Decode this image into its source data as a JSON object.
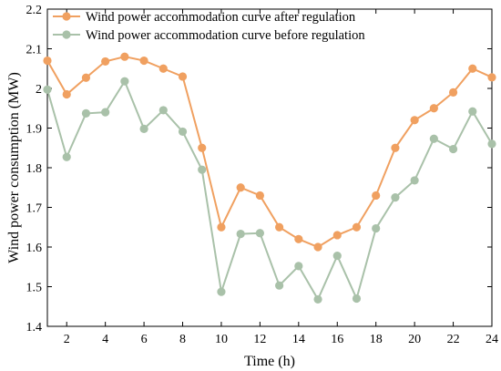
{
  "chart_data": {
    "type": "line",
    "xlabel": "Time (h)",
    "ylabel": "Wind power consumption (MW)",
    "xlim": [
      1,
      24
    ],
    "ylim": [
      1.4,
      2.2
    ],
    "xticks": [
      2,
      4,
      6,
      8,
      10,
      12,
      14,
      16,
      18,
      20,
      22,
      24
    ],
    "yticks": [
      1.4,
      1.5,
      1.6,
      1.7,
      1.8,
      1.9,
      2.0,
      2.1,
      2.2
    ],
    "ytick_labels": [
      "1.4",
      "1.5",
      "1.6",
      "1.7",
      "1.8",
      "1.9",
      "2",
      "2.1",
      "2.2"
    ],
    "grid": false,
    "legend_position": "top-left",
    "x": [
      1,
      2,
      3,
      4,
      5,
      6,
      7,
      8,
      9,
      10,
      11,
      12,
      13,
      14,
      15,
      16,
      17,
      18,
      19,
      20,
      21,
      22,
      23,
      24
    ],
    "series": [
      {
        "name": "Wind power accommodation curve after regulation",
        "color": "#F0A060",
        "values": [
          2.07,
          1.985,
          2.027,
          2.068,
          2.08,
          2.07,
          2.05,
          2.03,
          1.85,
          1.65,
          1.75,
          1.73,
          1.65,
          1.62,
          1.6,
          1.63,
          1.65,
          1.73,
          1.85,
          1.92,
          1.95,
          1.99,
          2.05,
          2.028
        ]
      },
      {
        "name": "Wind power accommodation curve before regulation",
        "color": "#A9C1A9",
        "values": [
          1.997,
          1.827,
          1.937,
          1.94,
          2.018,
          1.898,
          1.945,
          1.891,
          1.795,
          1.487,
          1.633,
          1.635,
          1.503,
          1.552,
          1.468,
          1.578,
          1.47,
          1.647,
          1.725,
          1.768,
          1.873,
          1.847,
          1.942,
          1.86
        ]
      }
    ]
  }
}
